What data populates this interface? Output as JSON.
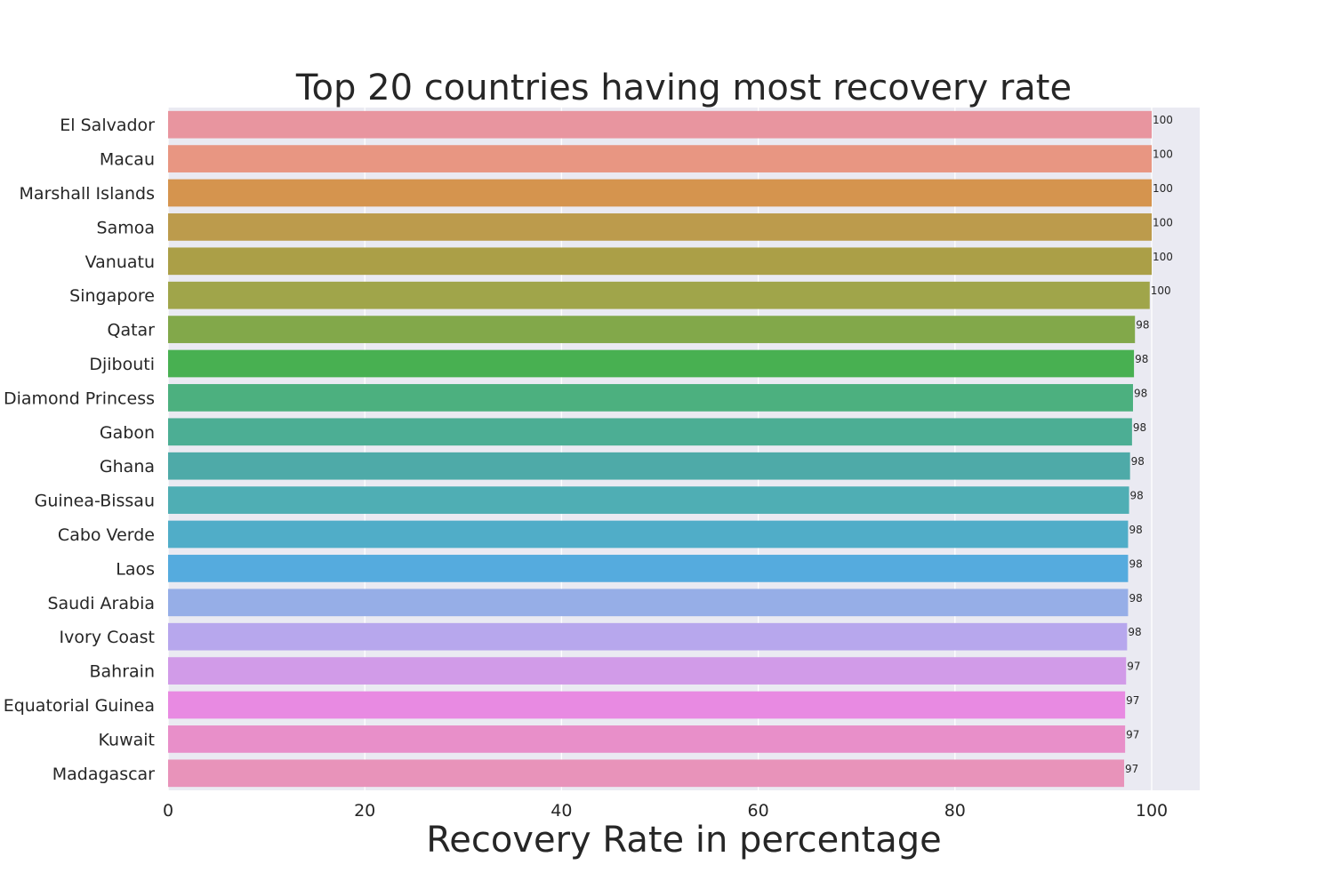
{
  "chart_data": {
    "type": "bar",
    "orientation": "horizontal",
    "title": "Top 20 countries having most recovery rate",
    "xlabel": "Recovery Rate in percentage",
    "ylabel": "",
    "xlim": [
      0,
      105
    ],
    "xticks": [
      0,
      20,
      40,
      60,
      80,
      100
    ],
    "grid": true,
    "categories": [
      "El Salvador",
      "Macau",
      "Marshall Islands",
      "Samoa",
      "Vanuatu",
      "Singapore",
      "Qatar",
      "Djibouti",
      "Diamond Princess",
      "Gabon",
      "Ghana",
      "Guinea-Bissau",
      "Cabo Verde",
      "Laos",
      "Saudi Arabia",
      "Ivory Coast",
      "Bahrain",
      "Equatorial Guinea",
      "Kuwait",
      "Madagascar"
    ],
    "values": [
      100,
      100,
      100,
      100,
      100,
      99.8,
      98.3,
      98.2,
      98.1,
      98.0,
      97.8,
      97.7,
      97.6,
      97.6,
      97.6,
      97.5,
      97.4,
      97.3,
      97.3,
      97.2
    ],
    "value_labels": [
      "100",
      "100",
      "100",
      "100",
      "100",
      "100",
      "98",
      "98",
      "98",
      "98",
      "98",
      "98",
      "98",
      "98",
      "98",
      "98",
      "97",
      "97",
      "97",
      "97"
    ],
    "colors": [
      "#e8959f",
      "#e89682",
      "#d5944e",
      "#bc9b4c",
      "#ab9f47",
      "#a0a54a",
      "#82a84a",
      "#48b051",
      "#4cb07f",
      "#4cae94",
      "#4eaaa8",
      "#4faeb4",
      "#50adc8",
      "#55abde",
      "#96aee7",
      "#b7a7ed",
      "#d19be8",
      "#e88ae2",
      "#e88fc9",
      "#e893ba"
    ],
    "background_color": "#eaeaf2"
  }
}
